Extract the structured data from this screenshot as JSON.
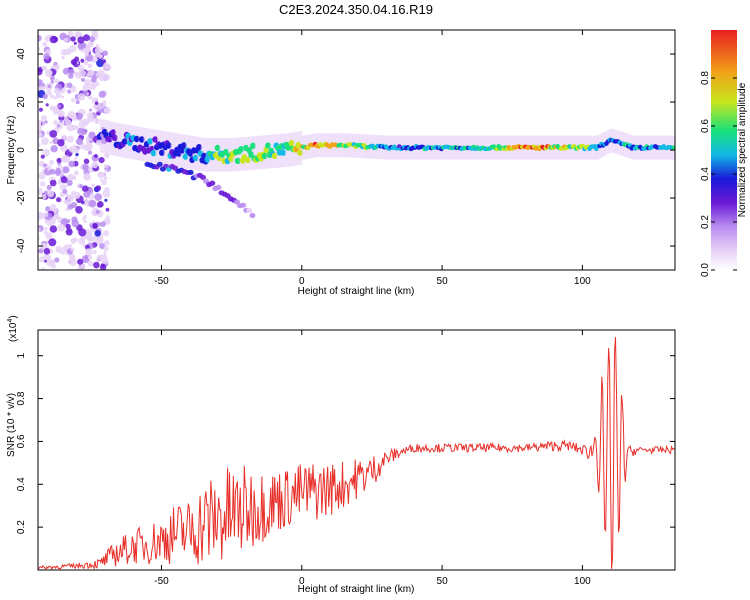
{
  "title": "C2E3.2024.350.04.16.R19",
  "colors": {
    "snr_line": "#e8302a",
    "axis": "#000000",
    "background": "#ffffff",
    "colormap": [
      "#ffffff",
      "#e7d2f7",
      "#b98cf0",
      "#6a1ad6",
      "#1a1ad9",
      "#12b8e6",
      "#19e07a",
      "#c7e61e",
      "#f0a418",
      "#e82020"
    ]
  },
  "chart_data": [
    {
      "type": "heatmap",
      "panel": "top",
      "xlabel": "Height of straight line (km)",
      "ylabel": "Frequency (Hz)",
      "xlim": [
        -94,
        133
      ],
      "ylim": [
        -50,
        50
      ],
      "xticks": [
        -50,
        0,
        50,
        100
      ],
      "yticks": [
        -40,
        -20,
        0,
        20,
        40
      ],
      "grid": false,
      "noise_region_x": [
        -94,
        -72
      ],
      "ridge": [
        {
          "x": -72,
          "f": 6,
          "a": 0.35
        },
        {
          "x": -65,
          "f": 4,
          "a": 0.4
        },
        {
          "x": -55,
          "f": 2,
          "a": 0.45
        },
        {
          "x": -45,
          "f": 0,
          "a": 0.45
        },
        {
          "x": -35,
          "f": -2,
          "a": 0.5
        },
        {
          "x": -25,
          "f": -2,
          "a": 0.75
        },
        {
          "x": -15,
          "f": -1,
          "a": 0.7
        },
        {
          "x": -5,
          "f": 0,
          "a": 0.65
        },
        {
          "x": 5,
          "f": 2,
          "a": 0.85
        },
        {
          "x": 15,
          "f": 2,
          "a": 0.75
        },
        {
          "x": 30,
          "f": 1,
          "a": 0.5
        },
        {
          "x": 50,
          "f": 1,
          "a": 0.55
        },
        {
          "x": 65,
          "f": 1,
          "a": 0.6
        },
        {
          "x": 80,
          "f": 1,
          "a": 0.95
        },
        {
          "x": 95,
          "f": 1,
          "a": 0.75
        },
        {
          "x": 105,
          "f": 1,
          "a": 0.6
        },
        {
          "x": 110,
          "f": 4,
          "a": 0.5
        },
        {
          "x": 118,
          "f": 1,
          "a": 0.55
        },
        {
          "x": 133,
          "f": 1,
          "a": 0.55
        }
      ],
      "branch": [
        {
          "x": -55,
          "f": -6,
          "a": 0.4
        },
        {
          "x": -45,
          "f": -8,
          "a": 0.45
        },
        {
          "x": -35,
          "f": -12,
          "a": 0.35
        },
        {
          "x": -25,
          "f": -20,
          "a": 0.25
        },
        {
          "x": -17,
          "f": -27,
          "a": 0.2
        }
      ]
    },
    {
      "type": "colorbar",
      "label": "Normalized spectral amplitude",
      "range": [
        0,
        1
      ],
      "ticks": [
        0.0,
        0.2,
        0.4,
        0.6,
        0.8
      ],
      "tick_labels": [
        "0.0",
        "0.2",
        "0.4",
        "0.6",
        "0.8"
      ]
    },
    {
      "type": "line",
      "panel": "bottom",
      "xlabel": "Height of straight line (km)",
      "ylabel": "SNR (10 * v/v)",
      "y_multiplier": "(x10",
      "y_multiplier_exp": "4",
      "y_multiplier_close": ")",
      "xlim": [
        -94,
        133
      ],
      "ylim": [
        0,
        1.12
      ],
      "xticks": [
        -50,
        0,
        50,
        100
      ],
      "yticks": [
        0.2,
        0.4,
        0.6,
        0.8,
        1.0
      ],
      "ytick_labels": [
        "0.2",
        "0.4",
        "0.6",
        "0.8",
        "1"
      ],
      "grid": false,
      "series": [
        {
          "x": [
            -94,
            -80,
            -72,
            -66,
            -60,
            -55,
            -50,
            -45,
            -40,
            -35,
            -30,
            -25,
            -20,
            -15,
            -10,
            -5,
            0,
            5,
            10,
            15,
            20,
            25,
            30,
            35,
            40,
            50,
            60,
            70,
            80,
            90,
            95,
            100,
            105,
            108,
            110,
            112,
            114,
            116,
            120,
            125,
            133
          ],
          "y": [
            0.01,
            0.02,
            0.03,
            0.08,
            0.11,
            0.12,
            0.14,
            0.17,
            0.18,
            0.22,
            0.24,
            0.26,
            0.28,
            0.3,
            0.32,
            0.34,
            0.36,
            0.37,
            0.38,
            0.4,
            0.43,
            0.46,
            0.52,
            0.55,
            0.57,
            0.57,
            0.57,
            0.57,
            0.57,
            0.58,
            0.58,
            0.56,
            0.55,
            0.55,
            0.55,
            0.55,
            0.55,
            0.55,
            0.56,
            0.56,
            0.56
          ],
          "noise_amplitude": [
            0.01,
            0.015,
            0.03,
            0.08,
            0.1,
            0.12,
            0.14,
            0.18,
            0.2,
            0.26,
            0.28,
            0.3,
            0.26,
            0.22,
            0.2,
            0.18,
            0.18,
            0.18,
            0.16,
            0.14,
            0.12,
            0.1,
            0.05,
            0.03,
            0.025,
            0.025,
            0.025,
            0.025,
            0.025,
            0.03,
            0.03,
            0.03,
            0.08,
            0.45,
            0.6,
            0.55,
            0.3,
            0.04,
            0.02,
            0.02,
            0.02
          ]
        }
      ]
    }
  ]
}
